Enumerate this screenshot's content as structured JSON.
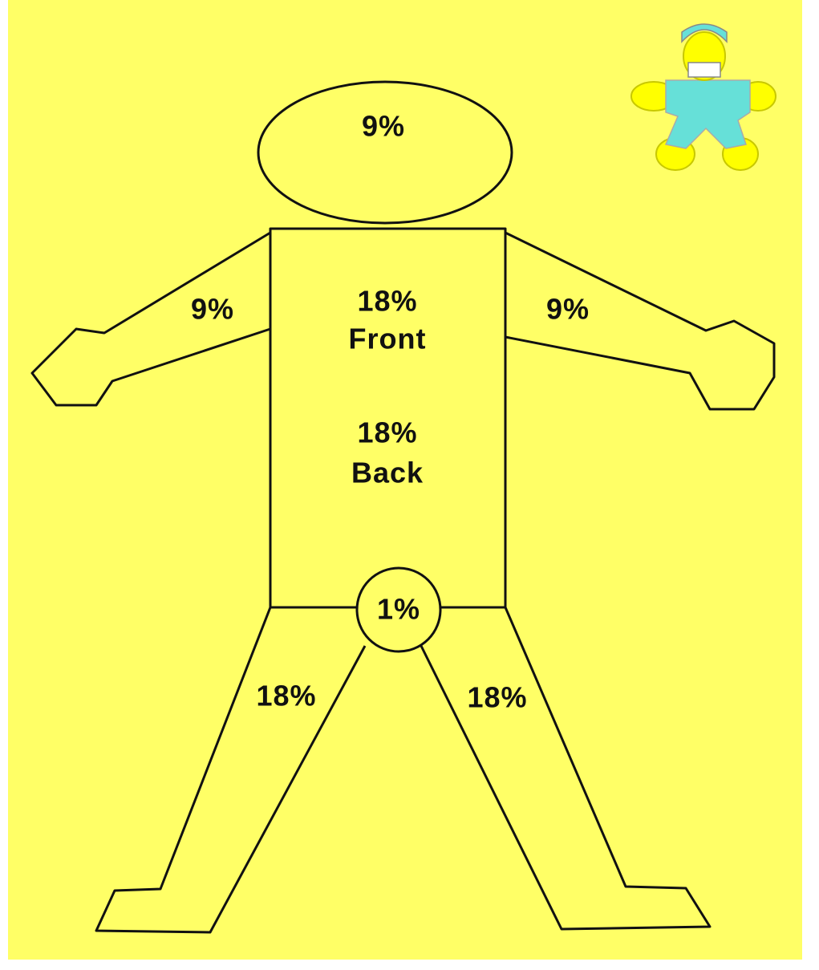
{
  "regions": {
    "head": {
      "label": "9%"
    },
    "torso": {
      "front": {
        "percent": "18%",
        "side": "Front"
      },
      "back": {
        "percent": "18%",
        "side": "Back"
      }
    },
    "left_arm": {
      "label": "9%"
    },
    "right_arm": {
      "label": "9%"
    },
    "groin": {
      "label": "1%"
    },
    "left_leg": {
      "label": "18%"
    },
    "right_leg": {
      "label": "18%"
    }
  }
}
